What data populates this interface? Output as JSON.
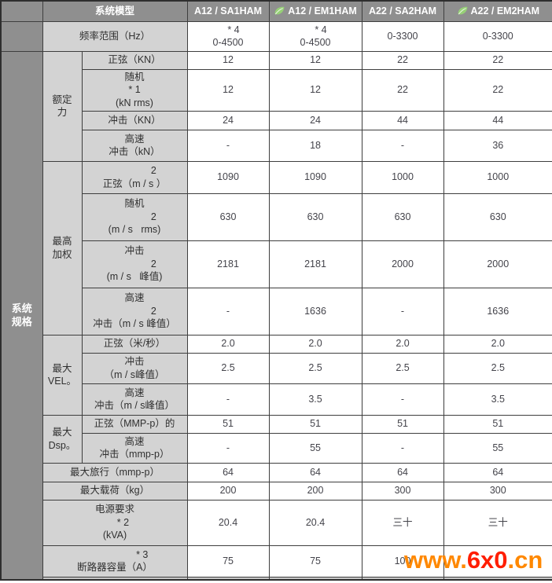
{
  "header": {
    "model_label": "系统模型",
    "columns": [
      {
        "label": "A12 / SA1HAM",
        "leaf": false
      },
      {
        "label": "A12 / EM1HAM",
        "leaf": true
      },
      {
        "label": "A22 / SA2HAM",
        "leaf": false
      },
      {
        "label": "A22 / EM2HAM",
        "leaf": true
      }
    ]
  },
  "freq_row": {
    "label": "频率范围（Hz）",
    "values": [
      "    * 4\n0-4500",
      "    * 4\n0-4500",
      "0-3300",
      "0-3300"
    ]
  },
  "section_label": "系统\n规格",
  "spec_rows": [
    {
      "group": "额定\n力",
      "group_span": 4,
      "label": "正弦（KN）",
      "values": [
        "12",
        "12",
        "22",
        "22"
      ]
    },
    {
      "label": "随机\n* 1\n(kN rms)",
      "values": [
        "12",
        "12",
        "22",
        "22"
      ]
    },
    {
      "label": "冲击（KN）",
      "values": [
        "24",
        "24",
        "44",
        "44"
      ]
    },
    {
      "label": "高速\n冲击（kN）",
      "values": [
        "-",
        "18",
        "-",
        "36"
      ]
    },
    {
      "group": "最高\n加权",
      "group_span": 4,
      "label": "              2\n正弦（m / s ）",
      "values": [
        "1090",
        "1090",
        "1000",
        "1000"
      ]
    },
    {
      "label": "随机\n              2\n(m / s   rms)",
      "values": [
        "630",
        "630",
        "630",
        "630"
      ]
    },
    {
      "label": "冲击\n              2\n(m / s   峰值)",
      "values": [
        "2181",
        "2181",
        "2000",
        "2000"
      ]
    },
    {
      "label": "高速\n              2\n冲击（m / s 峰值）",
      "values": [
        "-",
        "1636",
        "-",
        "1636"
      ]
    },
    {
      "group": "最大\nVEL。",
      "group_span": 3,
      "label": "正弦（米/秒）",
      "values": [
        "2.0",
        "2.0",
        "2.0",
        "2.0"
      ]
    },
    {
      "label": "冲击\n（m / s峰值）",
      "values": [
        "2.5",
        "2.5",
        "2.5",
        "2.5"
      ]
    },
    {
      "label": "高速\n冲击（m / s峰值）",
      "values": [
        "-",
        "3.5",
        "-",
        "3.5"
      ]
    },
    {
      "group": "最大\nDsp。",
      "group_span": 2,
      "label": "正弦（MMP-p）的",
      "values": [
        "51",
        "51",
        "51",
        "51"
      ]
    },
    {
      "label": "高速\n冲击（mmp-p）",
      "values": [
        "-",
        "55",
        "-",
        "55"
      ]
    },
    {
      "wide": true,
      "label": "最大旅行（mmp-p）",
      "values": [
        "64",
        "64",
        "64",
        "64"
      ]
    },
    {
      "wide": true,
      "label": "最大载荷（kg）",
      "values": [
        "200",
        "200",
        "300",
        "300"
      ]
    },
    {
      "wide": true,
      "label": "电源要求\n      * 2\n(kVA)",
      "values": [
        "20.4",
        "20.4",
        "三十",
        "三十"
      ]
    },
    {
      "wide": true,
      "label": "                    * 3\n断路器容量（A）",
      "values": [
        "75",
        "75",
        "100",
        ""
      ]
    }
  ],
  "watermark": {
    "parts": [
      {
        "text": "www.",
        "color": "#ff8800"
      },
      {
        "text": "6x0",
        "color": "#ff1e00"
      },
      {
        "text": ".cn",
        "color": "#ff8800"
      }
    ]
  },
  "colors": {
    "leaf_green": "#97d077",
    "header_gray": "#8f8f8f",
    "label_gray": "#d3d3d3"
  }
}
